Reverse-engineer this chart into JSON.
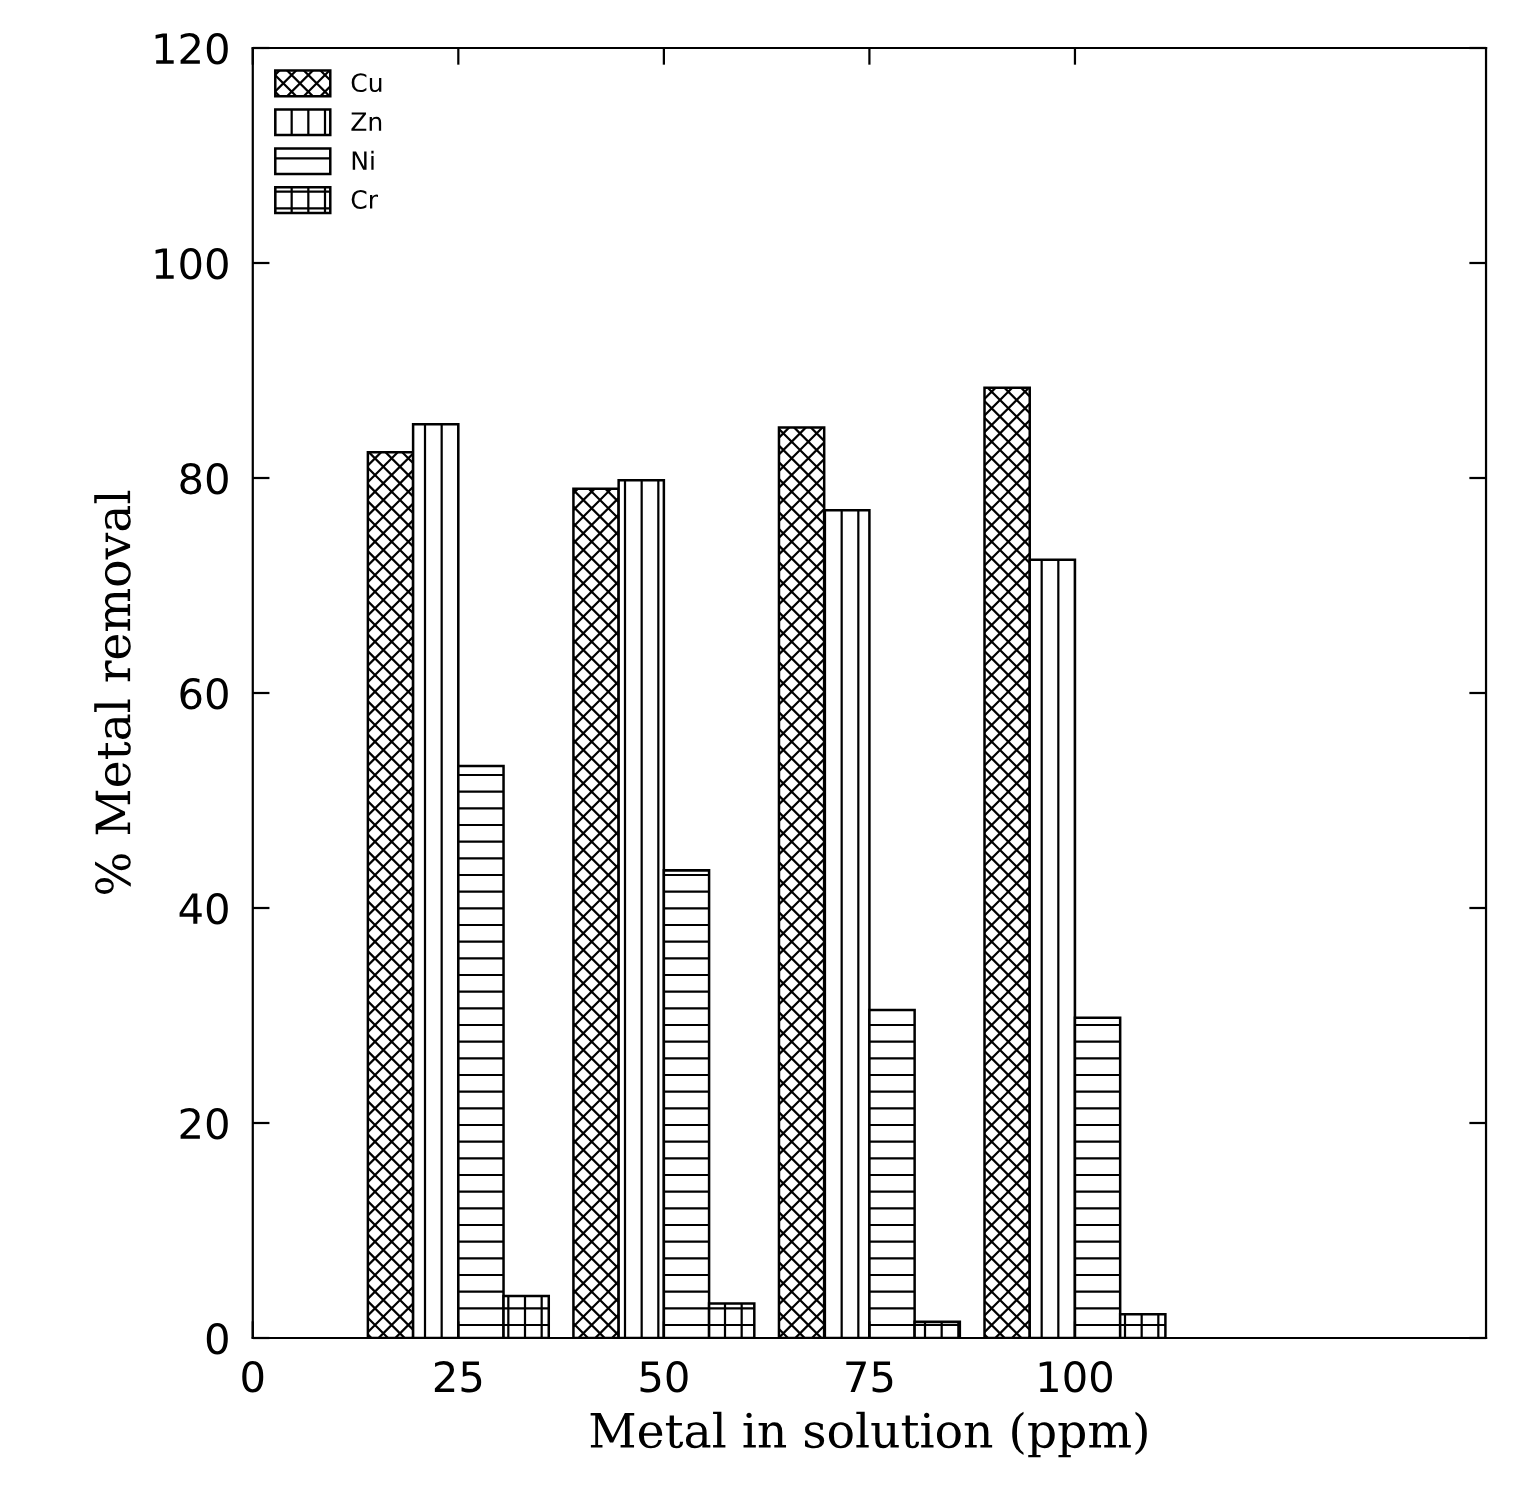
{
  "chart_data": {
    "type": "bar",
    "xlabel": "Metal in solution (ppm)",
    "ylabel": "% Metal removal",
    "x": [
      25,
      50,
      75,
      100
    ],
    "series": [
      {
        "name": "Cu",
        "color": "#000000",
        "values": [
          82.4,
          79.0,
          84.7,
          88.4
        ]
      },
      {
        "name": "Zn",
        "color": "#000000",
        "values": [
          85.0,
          79.8,
          77.0,
          72.4
        ]
      },
      {
        "name": "Ni",
        "color": "#000000",
        "values": [
          53.2,
          43.5,
          30.5,
          29.8
        ]
      },
      {
        "name": "Cr",
        "color": "#000000",
        "values": [
          3.9,
          3.2,
          1.5,
          2.2
        ]
      }
    ],
    "xlim": [
      0,
      150
    ],
    "xticks": [
      0,
      25,
      50,
      75,
      100
    ],
    "ylim": [
      0,
      120
    ],
    "yticks": [
      0,
      20,
      40,
      60,
      80,
      100,
      120
    ],
    "grid": false,
    "legend": "top left"
  }
}
